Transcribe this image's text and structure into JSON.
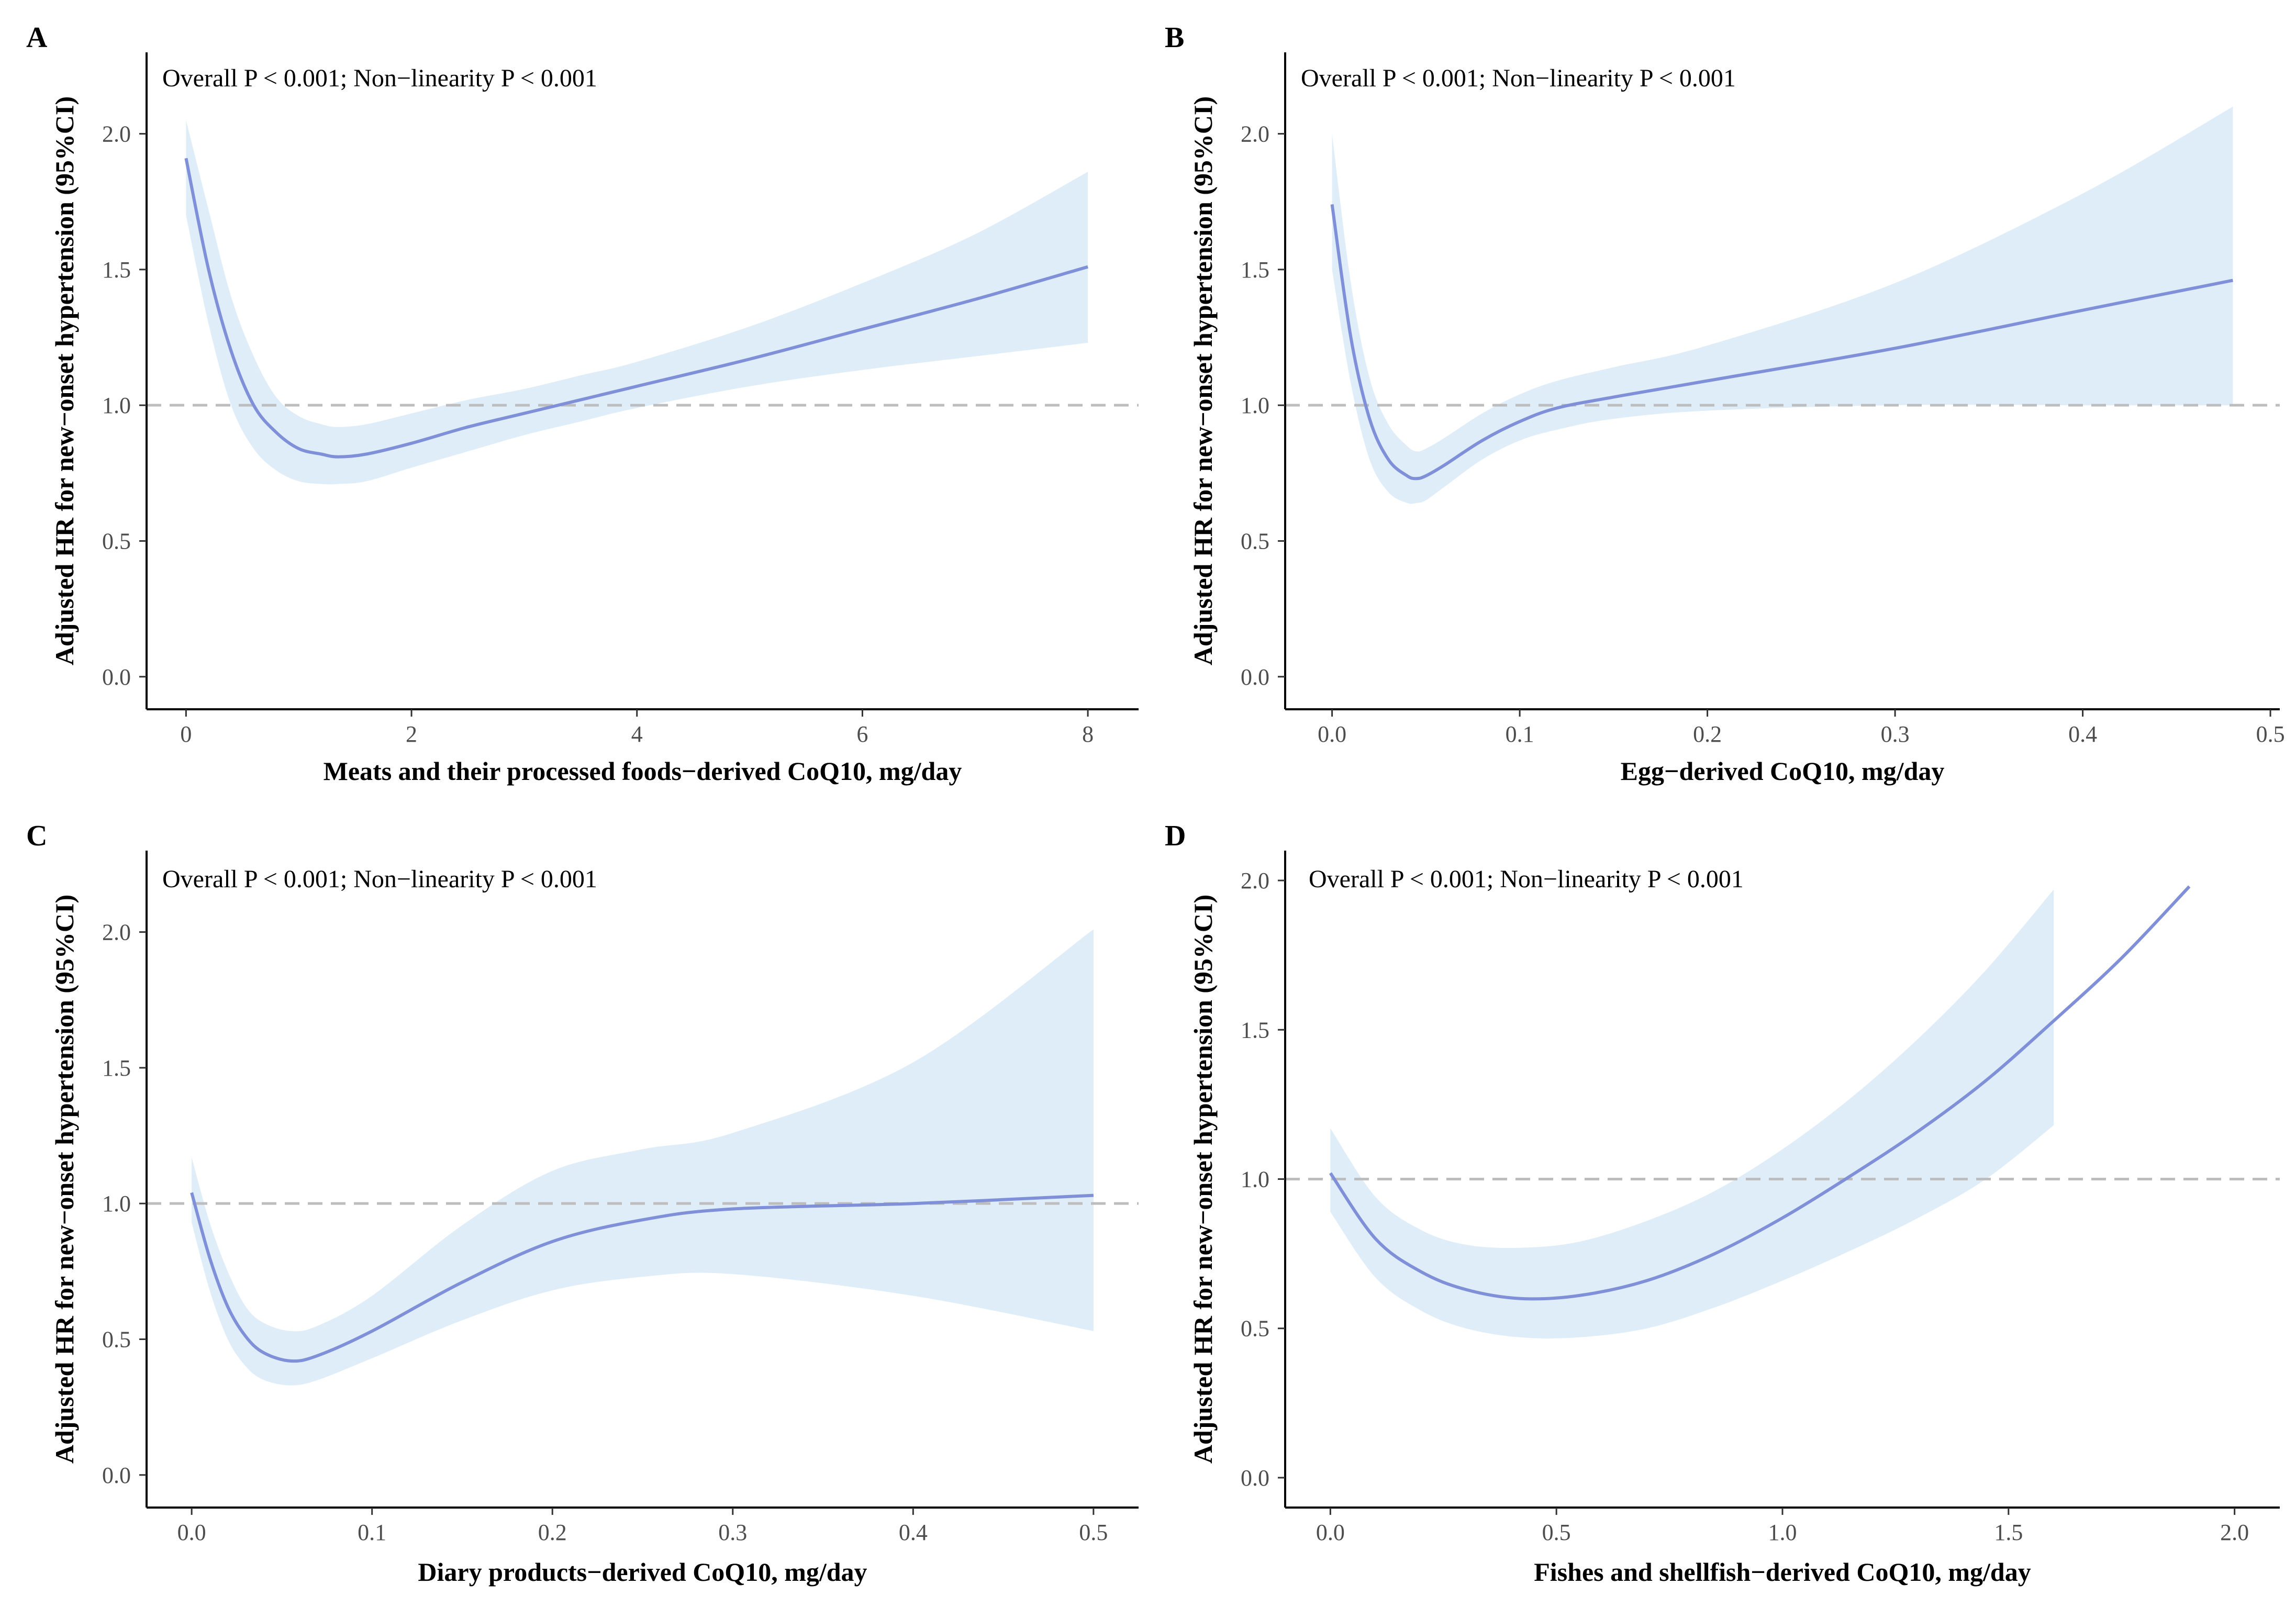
{
  "colors": {
    "band": "#deedf8",
    "curve": "#8090d8",
    "reference": "#bdbdbd"
  },
  "chart_data": [
    {
      "type": "line",
      "panel": "A",
      "annotation": "Overall P < 0.001; Non−linearity P  < 0.001",
      "xlabel": "Meats and their processed foods−derived CoQ10, mg/day",
      "ylabel": "Adjusted HR for new−onset hypertension (95%CI)",
      "xlim": [
        -0.35,
        8.45
      ],
      "ylim": [
        -0.12,
        2.3
      ],
      "xticks": [
        0,
        2,
        4,
        6,
        8
      ],
      "xtick_labels": [
        "0",
        "2",
        "4",
        "6",
        "8"
      ],
      "yticks": [
        0,
        0.5,
        1,
        1.5,
        2
      ],
      "ytick_labels": [
        "0.0",
        "0.5",
        "1.0",
        "1.5",
        "2.0"
      ],
      "reference_y": 1.0,
      "series": [
        {
          "name": "HR",
          "x": [
            0,
            0.2,
            0.4,
            0.6,
            0.8,
            1.0,
            1.2,
            1.35,
            1.6,
            2.0,
            2.5,
            3.0,
            3.5,
            4.0,
            5.0,
            6.0,
            7.0,
            8.0
          ],
          "values": [
            1.91,
            1.5,
            1.2,
            1.0,
            0.9,
            0.84,
            0.82,
            0.81,
            0.82,
            0.86,
            0.92,
            0.97,
            1.02,
            1.07,
            1.17,
            1.28,
            1.39,
            1.51
          ]
        },
        {
          "name": "Lower 95% CI",
          "x": [
            0,
            0.2,
            0.4,
            0.6,
            0.8,
            1.0,
            1.2,
            1.35,
            1.6,
            2.0,
            2.5,
            3.0,
            3.5,
            4.0,
            5.0,
            6.0,
            7.0,
            8.0
          ],
          "values": [
            1.7,
            1.3,
            1.0,
            0.84,
            0.76,
            0.72,
            0.71,
            0.71,
            0.72,
            0.77,
            0.83,
            0.89,
            0.94,
            0.99,
            1.07,
            1.13,
            1.18,
            1.23
          ]
        },
        {
          "name": "Upper 95% CI",
          "x": [
            0,
            0.2,
            0.4,
            0.6,
            0.8,
            1.0,
            1.2,
            1.35,
            1.6,
            2.0,
            2.5,
            3.0,
            3.5,
            4.0,
            5.0,
            6.0,
            7.0,
            8.0
          ],
          "values": [
            2.05,
            1.72,
            1.4,
            1.18,
            1.03,
            0.96,
            0.93,
            0.92,
            0.93,
            0.97,
            1.02,
            1.06,
            1.11,
            1.16,
            1.29,
            1.45,
            1.63,
            1.86
          ]
        }
      ]
    },
    {
      "type": "line",
      "panel": "B",
      "annotation": "Overall P < 0.001; Non−linearity P  < 0.001",
      "xlabel": "Egg−derived CoQ10, mg/day",
      "ylabel": "Adjusted HR for new−onset hypertension (95%CI)",
      "xlim": [
        -0.025,
        0.505
      ],
      "ylim": [
        -0.12,
        2.3
      ],
      "xticks": [
        0,
        0.1,
        0.2,
        0.3,
        0.4,
        0.5
      ],
      "xtick_labels": [
        "0.0",
        "0.1",
        "0.2",
        "0.3",
        "0.4",
        "0.5"
      ],
      "yticks": [
        0,
        0.5,
        1,
        1.5,
        2
      ],
      "ytick_labels": [
        "0.0",
        "0.5",
        "1.0",
        "1.5",
        "2.0"
      ],
      "reference_y": 1.0,
      "series": [
        {
          "name": "HR",
          "x": [
            0,
            0.01,
            0.02,
            0.03,
            0.04,
            0.045,
            0.05,
            0.06,
            0.08,
            0.1,
            0.12,
            0.15,
            0.2,
            0.3,
            0.4,
            0.48
          ],
          "values": [
            1.74,
            1.25,
            0.95,
            0.8,
            0.74,
            0.73,
            0.74,
            0.78,
            0.87,
            0.94,
            0.99,
            1.03,
            1.09,
            1.21,
            1.35,
            1.46
          ]
        },
        {
          "name": "Lower 95% CI",
          "x": [
            0,
            0.01,
            0.02,
            0.03,
            0.04,
            0.045,
            0.05,
            0.06,
            0.08,
            0.1,
            0.12,
            0.15,
            0.2,
            0.3,
            0.4,
            0.48
          ],
          "values": [
            1.5,
            1.08,
            0.8,
            0.68,
            0.64,
            0.64,
            0.65,
            0.7,
            0.8,
            0.87,
            0.91,
            0.95,
            0.98,
            1.0,
            1.0,
            1.0
          ]
        },
        {
          "name": "Upper 95% CI",
          "x": [
            0,
            0.01,
            0.02,
            0.03,
            0.04,
            0.045,
            0.05,
            0.06,
            0.08,
            0.1,
            0.12,
            0.15,
            0.2,
            0.3,
            0.4,
            0.48
          ],
          "values": [
            2.0,
            1.45,
            1.1,
            0.93,
            0.85,
            0.83,
            0.84,
            0.88,
            0.97,
            1.04,
            1.09,
            1.14,
            1.22,
            1.45,
            1.78,
            2.1
          ]
        }
      ]
    },
    {
      "type": "line",
      "panel": "C",
      "annotation": "Overall P < 0.001; Non−linearity P  < 0.001",
      "xlabel": "Diary products−derived CoQ10, mg/day",
      "ylabel": "Adjusted HR for new−onset hypertension (95%CI)",
      "xlim": [
        -0.025,
        0.525
      ],
      "ylim": [
        -0.12,
        2.3
      ],
      "xticks": [
        0,
        0.1,
        0.2,
        0.3,
        0.4,
        0.5
      ],
      "xtick_labels": [
        "0.0",
        "0.1",
        "0.2",
        "0.3",
        "0.4",
        "0.5"
      ],
      "yticks": [
        0,
        0.5,
        1,
        1.5,
        2
      ],
      "ytick_labels": [
        "0.0",
        "0.5",
        "1.0",
        "1.5",
        "2.0"
      ],
      "reference_y": 1.0,
      "series": [
        {
          "name": "HR",
          "x": [
            0,
            0.01,
            0.02,
            0.03,
            0.04,
            0.055,
            0.07,
            0.1,
            0.15,
            0.2,
            0.25,
            0.3,
            0.4,
            0.5
          ],
          "values": [
            1.04,
            0.8,
            0.62,
            0.51,
            0.45,
            0.42,
            0.44,
            0.53,
            0.71,
            0.86,
            0.94,
            0.98,
            1.0,
            1.03
          ]
        },
        {
          "name": "Lower 95% CI",
          "x": [
            0,
            0.01,
            0.02,
            0.03,
            0.04,
            0.055,
            0.07,
            0.1,
            0.15,
            0.2,
            0.25,
            0.3,
            0.4,
            0.5
          ],
          "values": [
            0.93,
            0.68,
            0.5,
            0.4,
            0.35,
            0.33,
            0.35,
            0.43,
            0.57,
            0.68,
            0.73,
            0.74,
            0.66,
            0.53
          ]
        },
        {
          "name": "Upper 95% CI",
          "x": [
            0,
            0.01,
            0.02,
            0.03,
            0.04,
            0.055,
            0.07,
            0.1,
            0.15,
            0.2,
            0.25,
            0.3,
            0.4,
            0.5
          ],
          "values": [
            1.17,
            0.93,
            0.75,
            0.62,
            0.56,
            0.53,
            0.55,
            0.66,
            0.92,
            1.12,
            1.2,
            1.26,
            1.52,
            2.01
          ]
        }
      ]
    },
    {
      "type": "line",
      "panel": "D",
      "annotation": "Overall P < 0.001; Non−linearity P  < 0.001",
      "xlabel": "Fishes and shellfish−derived CoQ10, mg/day",
      "ylabel": "Adjusted HR for new−onset hypertension (95%CI)",
      "xlim": [
        -0.1,
        2.1
      ],
      "ylim": [
        -0.1,
        2.1
      ],
      "xticks": [
        0,
        0.5,
        1,
        1.5,
        2
      ],
      "xtick_labels": [
        "0.0",
        "0.5",
        "1.0",
        "1.5",
        "2.0"
      ],
      "yticks": [
        0,
        0.5,
        1,
        1.5,
        2
      ],
      "ytick_labels": [
        "0.0",
        "0.5",
        "1.0",
        "1.5",
        "2.0"
      ],
      "reference_y": 1.0,
      "series": [
        {
          "name": "HR",
          "x": [
            0,
            0.1,
            0.2,
            0.3,
            0.42,
            0.55,
            0.7,
            0.85,
            1.0,
            1.15,
            1.3,
            1.45,
            1.6,
            1.75,
            1.9
          ],
          "values": [
            1.02,
            0.8,
            0.69,
            0.63,
            0.6,
            0.61,
            0.66,
            0.75,
            0.87,
            1.01,
            1.16,
            1.33,
            1.53,
            1.74,
            1.98
          ]
        },
        {
          "name": "Lower 95% CI",
          "x": [
            0,
            0.1,
            0.2,
            0.3,
            0.42,
            0.55,
            0.7,
            0.85,
            1.0,
            1.15,
            1.3,
            1.45,
            1.6
          ],
          "values": [
            0.89,
            0.67,
            0.56,
            0.5,
            0.47,
            0.47,
            0.5,
            0.57,
            0.66,
            0.76,
            0.87,
            1.0,
            1.18
          ]
        },
        {
          "name": "Upper 95% CI",
          "x": [
            0,
            0.1,
            0.2,
            0.3,
            0.42,
            0.55,
            0.7,
            0.85,
            1.0,
            1.15,
            1.3,
            1.45,
            1.6
          ],
          "values": [
            1.17,
            0.94,
            0.83,
            0.78,
            0.77,
            0.79,
            0.86,
            0.96,
            1.1,
            1.27,
            1.47,
            1.7,
            1.97
          ]
        }
      ]
    }
  ]
}
